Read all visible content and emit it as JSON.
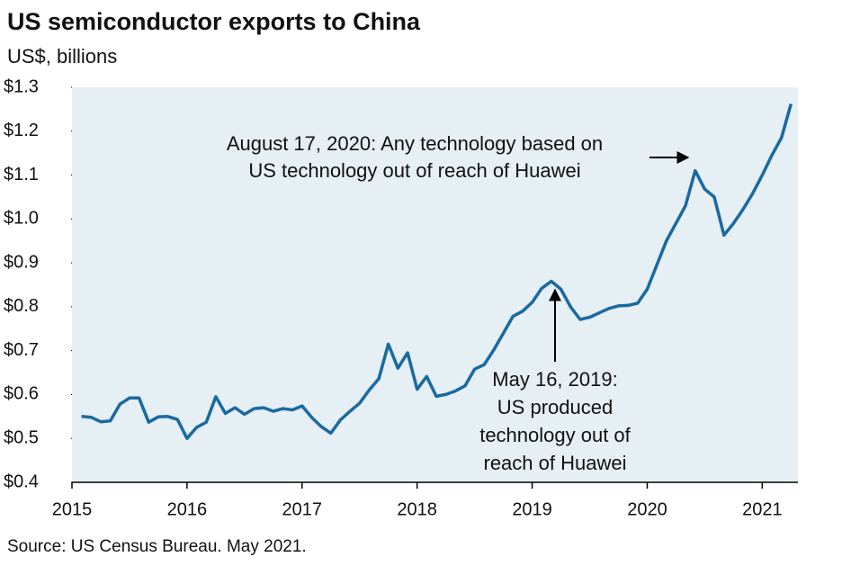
{
  "chart_data": {
    "type": "line",
    "title": "US semiconductor exports to China",
    "subtitle": "US$, billions",
    "source": "Source: US Census Bureau. May 2021.",
    "x": [
      2015.083,
      2015.167,
      2015.25,
      2015.333,
      2015.417,
      2015.5,
      2015.583,
      2015.667,
      2015.75,
      2015.833,
      2015.917,
      2016,
      2016.083,
      2016.167,
      2016.25,
      2016.333,
      2016.417,
      2016.5,
      2016.583,
      2016.667,
      2016.75,
      2016.833,
      2016.917,
      2017,
      2017.083,
      2017.167,
      2017.25,
      2017.333,
      2017.417,
      2017.5,
      2017.583,
      2017.667,
      2017.75,
      2017.833,
      2017.917,
      2018,
      2018.083,
      2018.167,
      2018.25,
      2018.333,
      2018.417,
      2018.5,
      2018.583,
      2018.667,
      2018.75,
      2018.833,
      2018.917,
      2019,
      2019.083,
      2019.167,
      2019.25,
      2019.333,
      2019.417,
      2019.5,
      2019.583,
      2019.667,
      2019.75,
      2019.833,
      2019.917,
      2020,
      2020.083,
      2020.167,
      2020.25,
      2020.333,
      2020.417,
      2020.5,
      2020.583,
      2020.667,
      2020.75,
      2020.833,
      2020.917,
      2021,
      2021.083,
      2021.167,
      2021.25
    ],
    "series": [
      {
        "name": "US semiconductor exports to China",
        "color": "#1a6aa0",
        "values": [
          0.55,
          0.548,
          0.538,
          0.54,
          0.578,
          0.592,
          0.592,
          0.537,
          0.549,
          0.55,
          0.543,
          0.5,
          0.525,
          0.537,
          0.595,
          0.557,
          0.57,
          0.555,
          0.568,
          0.57,
          0.562,
          0.568,
          0.565,
          0.574,
          0.548,
          0.527,
          0.512,
          0.542,
          0.562,
          0.58,
          0.61,
          0.636,
          0.715,
          0.66,
          0.695,
          0.612,
          0.641,
          0.596,
          0.6,
          0.608,
          0.62,
          0.658,
          0.668,
          0.702,
          0.74,
          0.778,
          0.79,
          0.81,
          0.842,
          0.858,
          0.84,
          0.8,
          0.771,
          0.776,
          0.786,
          0.796,
          0.802,
          0.803,
          0.808,
          0.84,
          0.895,
          0.95,
          0.99,
          1.03,
          1.11,
          1.068,
          1.05,
          0.963,
          0.99,
          1.022,
          1.058,
          1.1,
          1.145,
          1.185,
          1.262
        ]
      }
    ],
    "xlim": [
      2015,
      2021.31
    ],
    "xticks": [
      2015,
      2016,
      2017,
      2018,
      2019,
      2020,
      2021
    ],
    "ylim": [
      0.4,
      1.3
    ],
    "yticks": [
      {
        "value": 0.4,
        "label": "$0.4"
      },
      {
        "value": 0.5,
        "label": "$0.5"
      },
      {
        "value": 0.6,
        "label": "$0.6"
      },
      {
        "value": 0.7,
        "label": "$0.7"
      },
      {
        "value": 0.8,
        "label": "$0.8"
      },
      {
        "value": 0.9,
        "label": "$0.9"
      },
      {
        "value": 1,
        "label": "$1.0"
      },
      {
        "value": 1.1,
        "label": "$1.1"
      },
      {
        "value": 1.2,
        "label": "$1.2"
      },
      {
        "value": 1.3,
        "label": "$1.3"
      }
    ],
    "annotations": [
      {
        "lines": [
          "August 17, 2020: Any technology based on",
          "US technology out of reach of Huawei"
        ]
      },
      {
        "lines": [
          "May 16, 2019:",
          "US produced",
          "technology out of",
          "reach of Huawei"
        ]
      }
    ]
  }
}
